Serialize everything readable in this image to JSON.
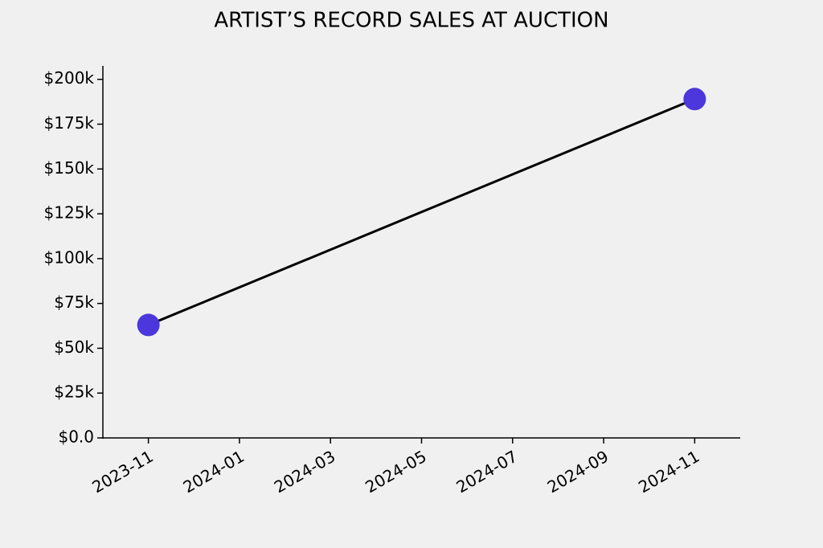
{
  "chart_data": {
    "type": "line",
    "title": "ARTIST’S RECORD SALES AT AUCTION",
    "x": [
      "2023-11",
      "2024-11"
    ],
    "values": [
      63000,
      189000
    ],
    "line_color": "#000000",
    "marker_color": "#4b37dc",
    "xlim": [
      "2023-10",
      "2024-12"
    ],
    "xticks": [
      "2023-11",
      "2024-01",
      "2024-03",
      "2024-05",
      "2024-07",
      "2024-09",
      "2024-11"
    ],
    "ylim": [
      0,
      207500
    ],
    "yticks": [
      {
        "value": 0,
        "label": "$0.0"
      },
      {
        "value": 25000,
        "label": "$25k"
      },
      {
        "value": 50000,
        "label": "$50k"
      },
      {
        "value": 75000,
        "label": "$75k"
      },
      {
        "value": 100000,
        "label": "$100k"
      },
      {
        "value": 125000,
        "label": "$125k"
      },
      {
        "value": 150000,
        "label": "$150k"
      },
      {
        "value": 175000,
        "label": "$175k"
      },
      {
        "value": 200000,
        "label": "$200k"
      }
    ],
    "grid": false
  }
}
